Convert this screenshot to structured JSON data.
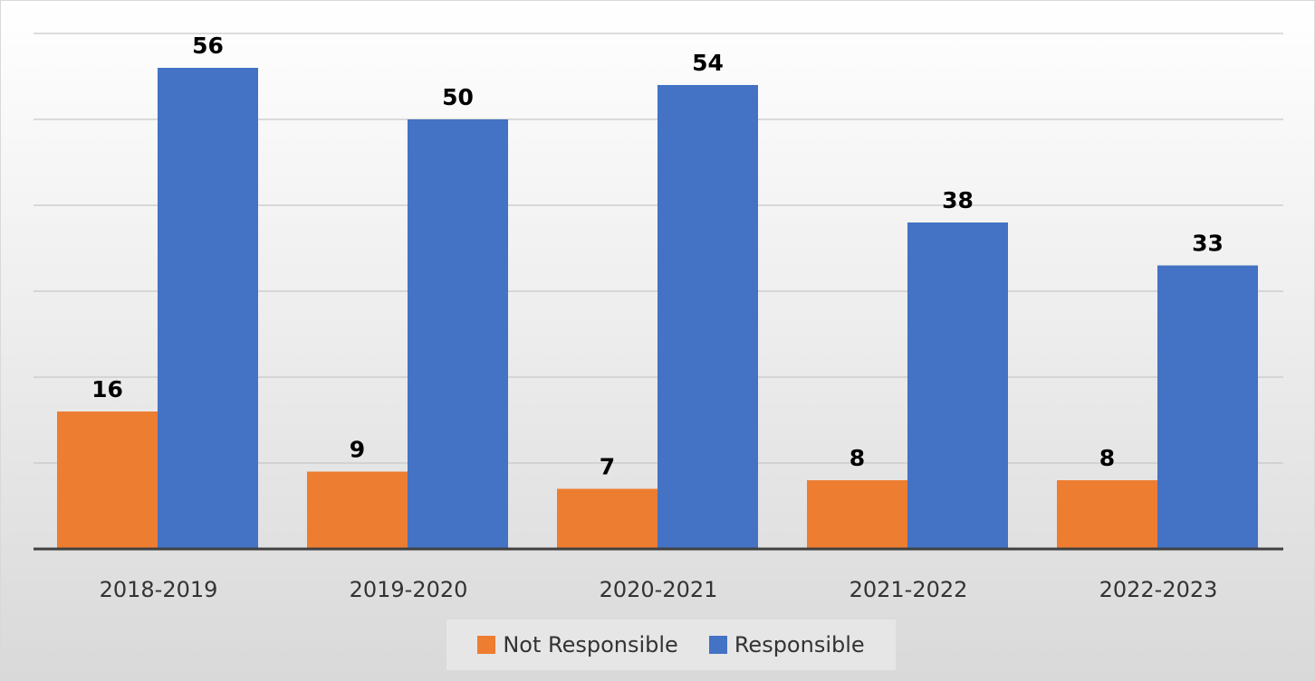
{
  "chart_data": {
    "type": "bar",
    "title": "",
    "xlabel": "",
    "ylabel": "",
    "categories": [
      "2018-2019",
      "2019-2020",
      "2020-2021",
      "2021-2022",
      "2022-2023"
    ],
    "series": [
      {
        "name": "Not Responsible",
        "color": "#ed7d31",
        "values": [
          16,
          9,
          7,
          8,
          8
        ]
      },
      {
        "name": "Responsible",
        "color": "#4472c4",
        "values": [
          56,
          50,
          54,
          38,
          33
        ]
      }
    ],
    "ylim": [
      0,
      60
    ],
    "y_gridlines": [
      10,
      20,
      30,
      40,
      50,
      60
    ],
    "grid": true,
    "y_axis_labels_shown": false,
    "data_labels_shown": true,
    "legend_position": "bottom"
  }
}
